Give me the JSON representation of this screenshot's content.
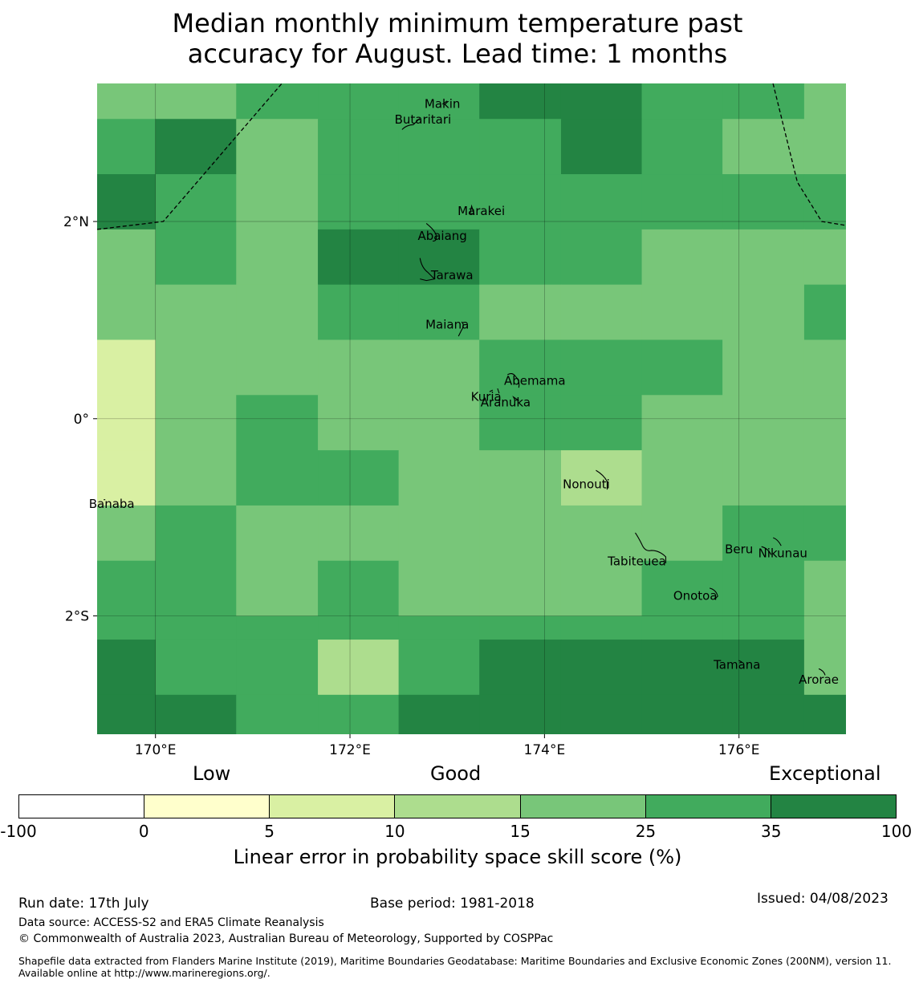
{
  "title_lines": [
    "Median monthly minimum temperature past",
    "accuracy for August. Lead time: 1 months"
  ],
  "map": {
    "lon_range": [
      169.4,
      177.1
    ],
    "lat_range": [
      -3.2,
      3.4
    ],
    "lon_ticks": [
      {
        "value": 170,
        "label": "170°E"
      },
      {
        "value": 172,
        "label": "172°E"
      },
      {
        "value": 174,
        "label": "174°E"
      },
      {
        "value": 176,
        "label": "176°E"
      }
    ],
    "lat_ticks": [
      {
        "value": 2,
        "label": "2°N"
      },
      {
        "value": 0,
        "label": "0°"
      },
      {
        "value": -2,
        "label": "2°S"
      }
    ],
    "grid_col_edges": [
      169.4,
      170.0,
      170.83,
      171.67,
      172.5,
      173.33,
      174.17,
      175.0,
      175.83,
      176.67,
      177.1
    ],
    "grid_row_edges": [
      3.4,
      3.04,
      2.48,
      1.92,
      1.36,
      0.8,
      0.24,
      -0.32,
      -0.88,
      -1.44,
      -2.0,
      -2.24,
      -2.8,
      -3.2
    ],
    "skill_classes": [
      [
        4,
        4,
        5,
        5,
        5,
        6,
        6,
        5,
        5,
        4
      ],
      [
        5,
        6,
        4,
        5,
        5,
        5,
        6,
        5,
        4,
        4
      ],
      [
        6,
        5,
        4,
        5,
        5,
        5,
        5,
        5,
        5,
        5
      ],
      [
        4,
        5,
        4,
        6,
        6,
        5,
        5,
        4,
        4,
        4
      ],
      [
        4,
        4,
        4,
        5,
        5,
        4,
        4,
        4,
        4,
        5
      ],
      [
        2,
        4,
        4,
        4,
        4,
        5,
        5,
        5,
        4,
        4
      ],
      [
        2,
        4,
        5,
        4,
        4,
        5,
        5,
        4,
        4,
        4
      ],
      [
        2,
        4,
        5,
        5,
        4,
        4,
        3,
        4,
        4,
        4
      ],
      [
        4,
        5,
        4,
        4,
        4,
        4,
        4,
        4,
        5,
        5
      ],
      [
        5,
        5,
        4,
        5,
        4,
        4,
        4,
        5,
        5,
        4
      ],
      [
        5,
        5,
        5,
        5,
        5,
        5,
        5,
        5,
        5,
        4
      ],
      [
        6,
        5,
        5,
        3,
        5,
        6,
        6,
        6,
        6,
        4
      ],
      [
        6,
        6,
        5,
        5,
        6,
        6,
        6,
        6,
        6,
        6
      ]
    ],
    "eez_boundaries": [
      [
        [
          169.4,
          1.92
        ],
        [
          170.08,
          2.0
        ],
        [
          171.3,
          3.4
        ]
      ],
      [
        [
          176.35,
          3.4
        ],
        [
          176.6,
          2.4
        ],
        [
          176.85,
          2.0
        ],
        [
          177.1,
          1.96
        ]
      ]
    ],
    "islands": [
      {
        "name": "Makin",
        "lon": 172.95,
        "lat": 3.19
      },
      {
        "name": "Butaritari",
        "lon": 172.75,
        "lat": 3.03
      },
      {
        "name": "Marakei",
        "lon": 173.35,
        "lat": 2.1
      },
      {
        "name": "Abaiang",
        "lon": 172.95,
        "lat": 1.85
      },
      {
        "name": "Tarawa",
        "lon": 173.05,
        "lat": 1.45
      },
      {
        "name": "Maiana",
        "lon": 173.0,
        "lat": 0.95
      },
      {
        "name": "Abemama",
        "lon": 173.9,
        "lat": 0.38
      },
      {
        "name": "Kuria",
        "lon": 173.4,
        "lat": 0.22
      },
      {
        "name": "Aranuka",
        "lon": 173.6,
        "lat": 0.16
      },
      {
        "name": "Nonouti",
        "lon": 174.43,
        "lat": -0.67
      },
      {
        "name": "Banaba",
        "lon": 169.55,
        "lat": -0.87
      },
      {
        "name": "Tabiteuea",
        "lon": 174.95,
        "lat": -1.45
      },
      {
        "name": "Beru",
        "lon": 176.0,
        "lat": -1.33
      },
      {
        "name": "Nikunau",
        "lon": 176.45,
        "lat": -1.37
      },
      {
        "name": "Onotoa",
        "lon": 175.55,
        "lat": -1.8
      },
      {
        "name": "Tamana",
        "lon": 175.98,
        "lat": -2.5
      },
      {
        "name": "Arorae",
        "lon": 176.82,
        "lat": -2.65
      }
    ]
  },
  "legend": {
    "category_labels": [
      "Low",
      "Good",
      "Exceptional"
    ],
    "segments": [
      {
        "from": -100,
        "to": 0,
        "color": "#ffffff"
      },
      {
        "from": 0,
        "to": 5,
        "color": "#ffffcc"
      },
      {
        "from": 5,
        "to": 10,
        "color": "#d9f0a3"
      },
      {
        "from": 10,
        "to": 15,
        "color": "#addd8e"
      },
      {
        "from": 15,
        "to": 25,
        "color": "#78c679"
      },
      {
        "from": 25,
        "to": 35,
        "color": "#41ab5d"
      },
      {
        "from": 35,
        "to": 100,
        "color": "#238443"
      }
    ],
    "tick_labels": [
      "-100",
      "0",
      "5",
      "10",
      "15",
      "25",
      "35",
      "100"
    ],
    "axis_label": "Linear error in probability space skill score (%)"
  },
  "footer": {
    "run_date": "Run date: 17th July",
    "base_period": "Base period: 1981-2018",
    "issued": "Issued: 04/08/2023",
    "data_source": "Data source: ACCESS-S2 and ERA5 Climate Reanalysis",
    "copyright": "© Commonwealth of Australia 2023, Australian Bureau of Meteorology, Supported by COSPPac",
    "shapefile": "Shapefile data extracted from Flanders Marine Institute (2019), Maritime Boundaries Geodatabase: Maritime Boundaries and Exclusive Economic Zones (200NM), version 11. Available online at http://www.marineregions.org/."
  }
}
